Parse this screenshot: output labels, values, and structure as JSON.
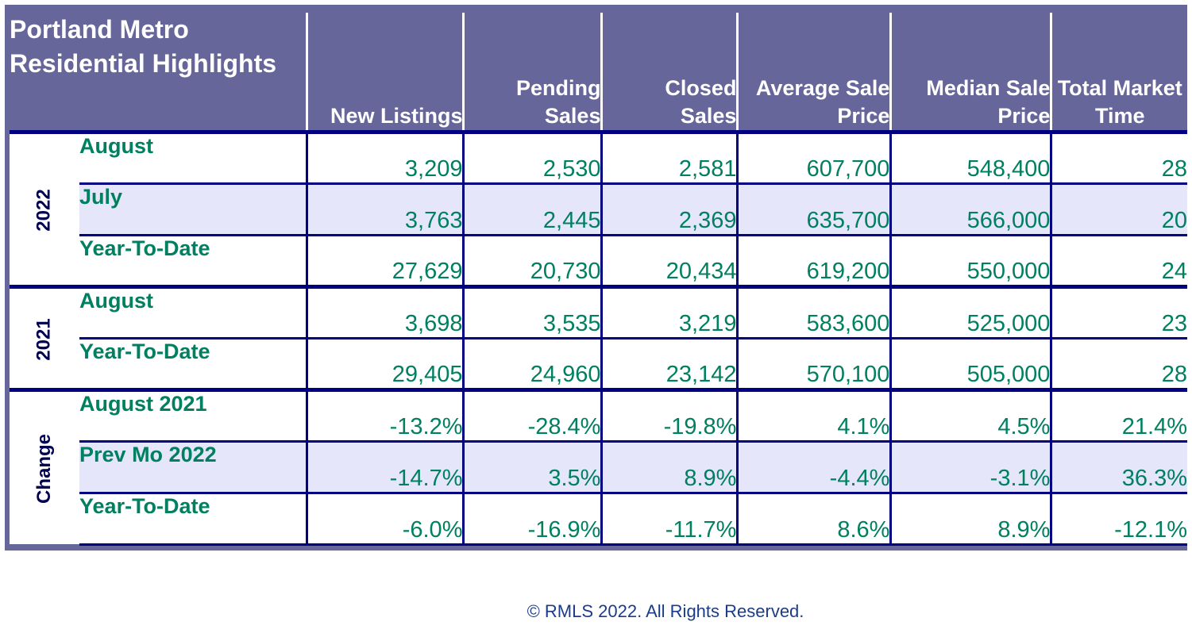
{
  "title": "Portland Metro Residential Highlights",
  "columns": [
    "New Listings",
    "Pending Sales",
    "Closed Sales",
    "Average Sale Price",
    "Median Sale Price",
    "Total Market Time"
  ],
  "groups": [
    {
      "label": "2022",
      "rows": [
        {
          "label": "August",
          "values": [
            "3,209",
            "2,530",
            "2,581",
            "607,700",
            "548,400",
            "28"
          ]
        },
        {
          "label": "July",
          "values": [
            "3,763",
            "2,445",
            "2,369",
            "635,700",
            "566,000",
            "20"
          ]
        },
        {
          "label": "Year-To-Date",
          "values": [
            "27,629",
            "20,730",
            "20,434",
            "619,200",
            "550,000",
            "24"
          ]
        }
      ]
    },
    {
      "label": "2021",
      "rows": [
        {
          "label": "August",
          "values": [
            "3,698",
            "3,535",
            "3,219",
            "583,600",
            "525,000",
            "23"
          ]
        },
        {
          "label": "Year-To-Date",
          "values": [
            "29,405",
            "24,960",
            "23,142",
            "570,100",
            "505,000",
            "28"
          ]
        }
      ]
    },
    {
      "label": "Change",
      "rows": [
        {
          "label": "August 2021",
          "values": [
            "-13.2%",
            "-28.4%",
            "-19.8%",
            "4.1%",
            "4.5%",
            "21.4%"
          ]
        },
        {
          "label": "Prev Mo 2022",
          "values": [
            "-14.7%",
            "3.5%",
            "8.9%",
            "-4.4%",
            "-3.1%",
            "36.3%"
          ]
        },
        {
          "label": "Year-To-Date",
          "values": [
            "-6.0%",
            "-16.9%",
            "-11.7%",
            "8.6%",
            "8.9%",
            "-12.1%"
          ]
        }
      ]
    }
  ],
  "copyright": "© RMLS 2022. All Rights Reserved.",
  "colors": {
    "header_bg": "#66669a",
    "value_text": "#008060",
    "group_bg": "#ccccff",
    "row_alt": "#e6e6fa",
    "border": "#000080"
  }
}
